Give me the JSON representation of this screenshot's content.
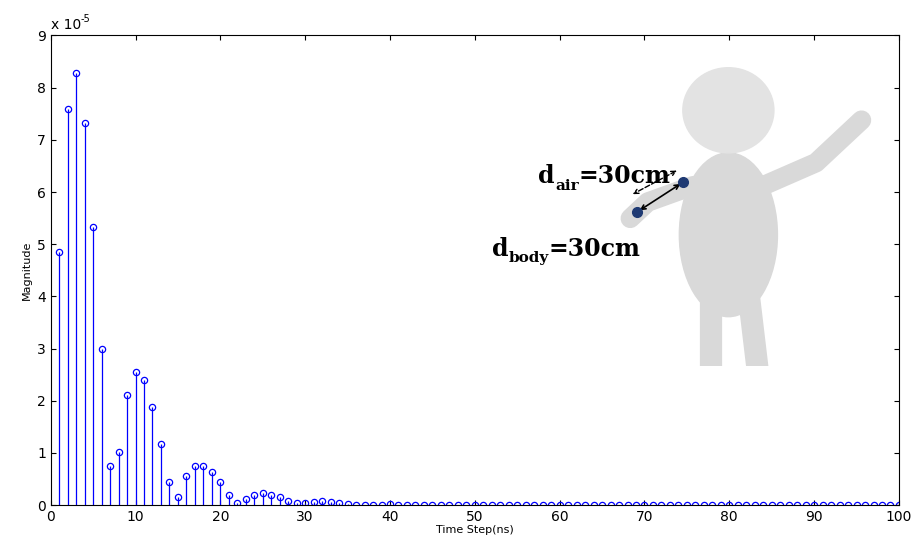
{
  "chart_data": {
    "type": "stem",
    "x_label": "Time Step(ns)",
    "y_label": "Magnitude",
    "y_multiplier": "x 10",
    "y_multiplier_exponent": "-5",
    "color": "#0000ff",
    "marker": "o",
    "annotations": [
      {
        "text": "d",
        "subscript": "air",
        "suffix": "=30cm"
      },
      {
        "text": "d",
        "subscript": "body",
        "suffix": "=30cm"
      }
    ],
    "x": [
      1,
      2,
      3,
      4,
      5,
      6,
      7,
      8,
      9,
      10,
      11,
      12,
      13,
      14,
      15,
      16,
      17,
      18,
      19,
      20,
      21,
      22,
      23,
      24,
      25,
      26,
      27,
      28,
      29,
      30,
      31,
      32,
      33,
      34,
      35,
      36,
      37,
      38,
      39,
      40,
      41,
      42,
      43,
      44,
      45,
      46,
      47,
      48,
      49,
      50,
      51,
      52,
      53,
      54,
      55,
      56,
      57,
      58,
      59,
      60,
      61,
      62,
      63,
      64,
      65,
      66,
      67,
      68,
      69,
      70,
      71,
      72,
      73,
      74,
      75,
      76,
      77,
      78,
      79,
      80,
      81,
      82,
      83,
      84,
      85,
      86,
      87,
      88,
      89,
      90,
      91,
      92,
      93,
      94,
      95,
      96,
      97,
      98,
      99,
      100
    ],
    "values": [
      4.85e-05,
      7.6e-05,
      8.28e-05,
      7.33e-05,
      5.33e-05,
      3e-05,
      7.5e-06,
      1.02e-05,
      2.1e-05,
      2.55e-05,
      2.4e-05,
      1.87e-05,
      1.17e-05,
      4.5e-06,
      1.5e-06,
      5.5e-06,
      7.5e-06,
      7.5e-06,
      6.3e-06,
      4.5e-06,
      2e-06,
      3e-07,
      1.2e-06,
      2e-06,
      2.3e-06,
      2e-06,
      1.5e-06,
      8e-07,
      3e-07,
      3e-07,
      6e-07,
      7e-07,
      6e-07,
      4e-07,
      2e-07,
      1e-07,
      1e-07,
      1e-07,
      1e-07,
      2e-07,
      1e-07,
      1e-07,
      1e-07,
      1e-07,
      1e-07,
      1e-07,
      1e-07,
      1e-07,
      1e-07,
      1e-07,
      1e-07,
      1e-07,
      1e-07,
      1e-07,
      1e-07,
      1e-07,
      1e-07,
      1e-07,
      1e-07,
      1e-07,
      1e-07,
      1e-07,
      1e-07,
      1e-07,
      1e-07,
      1e-07,
      1e-07,
      1e-07,
      1e-07,
      1e-07,
      1e-07,
      1e-07,
      1e-07,
      1e-07,
      1e-07,
      1e-07,
      1e-07,
      1e-07,
      1e-07,
      1e-07,
      1e-07,
      1e-07,
      1e-07,
      1e-07,
      1e-07,
      1e-07,
      1e-07,
      1e-07,
      1e-07,
      1e-07,
      1e-07,
      1e-07,
      1e-07,
      1e-07,
      1e-07,
      1e-07,
      1e-07,
      1e-07,
      1e-07,
      1e-07
    ],
    "xlim": [
      0,
      100
    ],
    "xticks": [
      0,
      10,
      20,
      30,
      40,
      50,
      60,
      70,
      80,
      90,
      100
    ],
    "ylim": [
      0,
      9e-05
    ],
    "yticks": [
      {
        "value": 0,
        "label": "0"
      },
      {
        "value": 1e-05,
        "label": "1"
      },
      {
        "value": 2e-05,
        "label": "2"
      },
      {
        "value": 3e-05,
        "label": "3"
      },
      {
        "value": 4e-05,
        "label": "4"
      },
      {
        "value": 5e-05,
        "label": "5"
      },
      {
        "value": 6e-05,
        "label": "6"
      },
      {
        "value": 7e-05,
        "label": "7"
      },
      {
        "value": 8e-05,
        "label": "8"
      },
      {
        "value": 9e-05,
        "label": "9"
      }
    ]
  }
}
